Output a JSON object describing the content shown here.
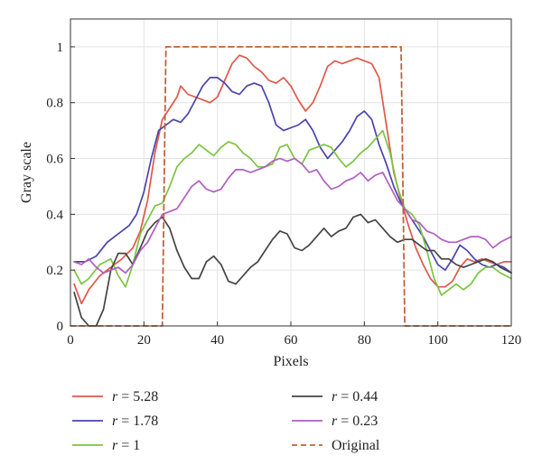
{
  "chart_data": {
    "type": "line",
    "xlabel": "Pixels",
    "ylabel": "Gray scale",
    "xlim": [
      0,
      120
    ],
    "ylim": [
      0,
      1.1
    ],
    "xticks": [
      "0",
      "20",
      "40",
      "60",
      "80",
      "100",
      "120"
    ],
    "xtick_values": [
      0,
      20,
      40,
      60,
      80,
      100,
      120
    ],
    "yticks": [
      "0",
      "0.2",
      "0.4",
      "0.6",
      "0.8",
      "1"
    ],
    "ytick_values": [
      0,
      0.2,
      0.4,
      0.6,
      0.8,
      1.0
    ],
    "grid": true,
    "legend_position": "bottom",
    "series": [
      {
        "name": "r = 5.28",
        "legend_var": "r",
        "legend_value": "= 5.28",
        "color": "#e0584a",
        "dashed": false,
        "points": [
          [
            1,
            0.15
          ],
          [
            3,
            0.08
          ],
          [
            5,
            0.13
          ],
          [
            8,
            0.18
          ],
          [
            11,
            0.21
          ],
          [
            14,
            0.24
          ],
          [
            17,
            0.28
          ],
          [
            19,
            0.34
          ],
          [
            21,
            0.45
          ],
          [
            23,
            0.62
          ],
          [
            25,
            0.74
          ],
          [
            27,
            0.78
          ],
          [
            29,
            0.82
          ],
          [
            30,
            0.86
          ],
          [
            32,
            0.83
          ],
          [
            34,
            0.82
          ],
          [
            36,
            0.81
          ],
          [
            38,
            0.8
          ],
          [
            40,
            0.82
          ],
          [
            42,
            0.88
          ],
          [
            44,
            0.94
          ],
          [
            46,
            0.97
          ],
          [
            48,
            0.96
          ],
          [
            50,
            0.93
          ],
          [
            52,
            0.91
          ],
          [
            54,
            0.88
          ],
          [
            56,
            0.87
          ],
          [
            58,
            0.89
          ],
          [
            60,
            0.86
          ],
          [
            62,
            0.81
          ],
          [
            64,
            0.77
          ],
          [
            66,
            0.8
          ],
          [
            68,
            0.86
          ],
          [
            70,
            0.93
          ],
          [
            72,
            0.95
          ],
          [
            74,
            0.94
          ],
          [
            76,
            0.95
          ],
          [
            78,
            0.96
          ],
          [
            80,
            0.95
          ],
          [
            82,
            0.94
          ],
          [
            84,
            0.89
          ],
          [
            86,
            0.72
          ],
          [
            88,
            0.55
          ],
          [
            90,
            0.45
          ],
          [
            92,
            0.36
          ],
          [
            94,
            0.28
          ],
          [
            96,
            0.22
          ],
          [
            98,
            0.17
          ],
          [
            100,
            0.14
          ],
          [
            102,
            0.14
          ],
          [
            104,
            0.16
          ],
          [
            106,
            0.21
          ],
          [
            108,
            0.24
          ],
          [
            110,
            0.23
          ],
          [
            112,
            0.24
          ],
          [
            114,
            0.23
          ],
          [
            116,
            0.22
          ],
          [
            118,
            0.23
          ],
          [
            120,
            0.23
          ]
        ]
      },
      {
        "name": "r = 1.78",
        "legend_var": "r",
        "legend_value": "= 1.78",
        "color": "#4a44ad",
        "dashed": false,
        "points": [
          [
            1,
            0.23
          ],
          [
            4,
            0.23
          ],
          [
            7,
            0.25
          ],
          [
            10,
            0.3
          ],
          [
            13,
            0.33
          ],
          [
            16,
            0.36
          ],
          [
            18,
            0.4
          ],
          [
            20,
            0.48
          ],
          [
            22,
            0.6
          ],
          [
            24,
            0.7
          ],
          [
            26,
            0.72
          ],
          [
            28,
            0.74
          ],
          [
            30,
            0.73
          ],
          [
            32,
            0.76
          ],
          [
            34,
            0.81
          ],
          [
            36,
            0.86
          ],
          [
            38,
            0.89
          ],
          [
            40,
            0.89
          ],
          [
            42,
            0.87
          ],
          [
            44,
            0.84
          ],
          [
            46,
            0.83
          ],
          [
            48,
            0.86
          ],
          [
            50,
            0.87
          ],
          [
            52,
            0.86
          ],
          [
            54,
            0.8
          ],
          [
            56,
            0.72
          ],
          [
            58,
            0.7
          ],
          [
            60,
            0.71
          ],
          [
            62,
            0.72
          ],
          [
            64,
            0.74
          ],
          [
            66,
            0.7
          ],
          [
            68,
            0.64
          ],
          [
            70,
            0.6
          ],
          [
            72,
            0.63
          ],
          [
            74,
            0.66
          ],
          [
            76,
            0.7
          ],
          [
            78,
            0.75
          ],
          [
            80,
            0.77
          ],
          [
            82,
            0.74
          ],
          [
            84,
            0.65
          ],
          [
            86,
            0.58
          ],
          [
            88,
            0.5
          ],
          [
            90,
            0.44
          ],
          [
            92,
            0.4
          ],
          [
            94,
            0.36
          ],
          [
            96,
            0.32
          ],
          [
            98,
            0.27
          ],
          [
            100,
            0.22
          ],
          [
            102,
            0.2
          ],
          [
            104,
            0.24
          ],
          [
            106,
            0.29
          ],
          [
            108,
            0.27
          ],
          [
            110,
            0.24
          ],
          [
            112,
            0.22
          ],
          [
            114,
            0.21
          ],
          [
            116,
            0.22
          ],
          [
            118,
            0.21
          ],
          [
            120,
            0.19
          ]
        ]
      },
      {
        "name": "r = 1",
        "legend_var": "r",
        "legend_value": "= 1",
        "color": "#7bc442",
        "dashed": false,
        "points": [
          [
            1,
            0.2
          ],
          [
            3,
            0.15
          ],
          [
            5,
            0.17
          ],
          [
            8,
            0.22
          ],
          [
            11,
            0.24
          ],
          [
            13,
            0.18
          ],
          [
            15,
            0.14
          ],
          [
            17,
            0.22
          ],
          [
            19,
            0.33
          ],
          [
            21,
            0.38
          ],
          [
            23,
            0.43
          ],
          [
            25,
            0.44
          ],
          [
            27,
            0.5
          ],
          [
            29,
            0.57
          ],
          [
            31,
            0.6
          ],
          [
            33,
            0.62
          ],
          [
            35,
            0.65
          ],
          [
            37,
            0.63
          ],
          [
            39,
            0.61
          ],
          [
            41,
            0.64
          ],
          [
            43,
            0.66
          ],
          [
            45,
            0.65
          ],
          [
            47,
            0.62
          ],
          [
            49,
            0.6
          ],
          [
            51,
            0.57
          ],
          [
            53,
            0.57
          ],
          [
            55,
            0.58
          ],
          [
            57,
            0.64
          ],
          [
            59,
            0.65
          ],
          [
            61,
            0.6
          ],
          [
            63,
            0.58
          ],
          [
            65,
            0.63
          ],
          [
            67,
            0.64
          ],
          [
            69,
            0.65
          ],
          [
            71,
            0.64
          ],
          [
            73,
            0.6
          ],
          [
            75,
            0.57
          ],
          [
            77,
            0.59
          ],
          [
            79,
            0.62
          ],
          [
            81,
            0.64
          ],
          [
            83,
            0.67
          ],
          [
            85,
            0.7
          ],
          [
            87,
            0.62
          ],
          [
            89,
            0.5
          ],
          [
            91,
            0.42
          ],
          [
            93,
            0.4
          ],
          [
            95,
            0.36
          ],
          [
            97,
            0.27
          ],
          [
            99,
            0.17
          ],
          [
            101,
            0.11
          ],
          [
            103,
            0.13
          ],
          [
            105,
            0.15
          ],
          [
            107,
            0.13
          ],
          [
            109,
            0.15
          ],
          [
            111,
            0.19
          ],
          [
            113,
            0.21
          ],
          [
            115,
            0.21
          ],
          [
            117,
            0.19
          ],
          [
            120,
            0.17
          ]
        ]
      },
      {
        "name": "r = 0.44",
        "legend_var": "r",
        "legend_value": "= 0.44",
        "color": "#444444",
        "dashed": false,
        "points": [
          [
            1,
            0.12
          ],
          [
            3,
            0.03
          ],
          [
            5,
            0.0
          ],
          [
            7,
            0.0
          ],
          [
            9,
            0.06
          ],
          [
            11,
            0.2
          ],
          [
            13,
            0.26
          ],
          [
            15,
            0.26
          ],
          [
            17,
            0.22
          ],
          [
            19,
            0.28
          ],
          [
            21,
            0.34
          ],
          [
            23,
            0.37
          ],
          [
            25,
            0.39
          ],
          [
            27,
            0.35
          ],
          [
            29,
            0.27
          ],
          [
            31,
            0.21
          ],
          [
            33,
            0.17
          ],
          [
            35,
            0.17
          ],
          [
            37,
            0.23
          ],
          [
            39,
            0.25
          ],
          [
            41,
            0.22
          ],
          [
            43,
            0.16
          ],
          [
            45,
            0.15
          ],
          [
            47,
            0.18
          ],
          [
            49,
            0.21
          ],
          [
            51,
            0.23
          ],
          [
            53,
            0.27
          ],
          [
            55,
            0.31
          ],
          [
            57,
            0.34
          ],
          [
            59,
            0.33
          ],
          [
            61,
            0.28
          ],
          [
            63,
            0.27
          ],
          [
            65,
            0.29
          ],
          [
            67,
            0.32
          ],
          [
            69,
            0.35
          ],
          [
            71,
            0.32
          ],
          [
            73,
            0.34
          ],
          [
            75,
            0.35
          ],
          [
            77,
            0.39
          ],
          [
            79,
            0.4
          ],
          [
            81,
            0.37
          ],
          [
            83,
            0.38
          ],
          [
            85,
            0.35
          ],
          [
            87,
            0.32
          ],
          [
            89,
            0.3
          ],
          [
            91,
            0.31
          ],
          [
            93,
            0.31
          ],
          [
            95,
            0.29
          ],
          [
            97,
            0.27
          ],
          [
            99,
            0.27
          ],
          [
            101,
            0.24
          ],
          [
            103,
            0.24
          ],
          [
            105,
            0.22
          ],
          [
            107,
            0.21
          ],
          [
            109,
            0.22
          ],
          [
            111,
            0.23
          ],
          [
            113,
            0.24
          ],
          [
            115,
            0.23
          ],
          [
            117,
            0.21
          ],
          [
            120,
            0.19
          ]
        ]
      },
      {
        "name": "r = 0.23",
        "legend_var": "r",
        "legend_value": "= 0.23",
        "color": "#b05ec0",
        "dashed": false,
        "points": [
          [
            1,
            0.23
          ],
          [
            3,
            0.22
          ],
          [
            5,
            0.24
          ],
          [
            7,
            0.21
          ],
          [
            9,
            0.19
          ],
          [
            11,
            0.2
          ],
          [
            13,
            0.21
          ],
          [
            15,
            0.19
          ],
          [
            17,
            0.22
          ],
          [
            19,
            0.27
          ],
          [
            21,
            0.3
          ],
          [
            23,
            0.35
          ],
          [
            25,
            0.4
          ],
          [
            27,
            0.41
          ],
          [
            29,
            0.42
          ],
          [
            31,
            0.46
          ],
          [
            33,
            0.5
          ],
          [
            35,
            0.52
          ],
          [
            37,
            0.49
          ],
          [
            39,
            0.48
          ],
          [
            41,
            0.49
          ],
          [
            43,
            0.53
          ],
          [
            45,
            0.56
          ],
          [
            47,
            0.56
          ],
          [
            49,
            0.55
          ],
          [
            51,
            0.56
          ],
          [
            53,
            0.57
          ],
          [
            55,
            0.59
          ],
          [
            57,
            0.6
          ],
          [
            59,
            0.59
          ],
          [
            61,
            0.6
          ],
          [
            63,
            0.58
          ],
          [
            65,
            0.55
          ],
          [
            67,
            0.56
          ],
          [
            69,
            0.52
          ],
          [
            71,
            0.49
          ],
          [
            73,
            0.5
          ],
          [
            75,
            0.52
          ],
          [
            77,
            0.53
          ],
          [
            79,
            0.55
          ],
          [
            81,
            0.52
          ],
          [
            83,
            0.54
          ],
          [
            85,
            0.55
          ],
          [
            87,
            0.5
          ],
          [
            89,
            0.45
          ],
          [
            91,
            0.42
          ],
          [
            93,
            0.38
          ],
          [
            95,
            0.37
          ],
          [
            97,
            0.34
          ],
          [
            99,
            0.33
          ],
          [
            101,
            0.31
          ],
          [
            103,
            0.3
          ],
          [
            105,
            0.3
          ],
          [
            107,
            0.31
          ],
          [
            109,
            0.32
          ],
          [
            111,
            0.32
          ],
          [
            113,
            0.31
          ],
          [
            115,
            0.28
          ],
          [
            117,
            0.3
          ],
          [
            120,
            0.32
          ]
        ]
      },
      {
        "name": "Original",
        "legend_var": "",
        "legend_value": "Original",
        "color": "#c0633a",
        "dashed": true,
        "points": [
          [
            0,
            0
          ],
          [
            25,
            0
          ],
          [
            26,
            1
          ],
          [
            90,
            1
          ],
          [
            91,
            0
          ],
          [
            120,
            0
          ]
        ]
      }
    ]
  }
}
